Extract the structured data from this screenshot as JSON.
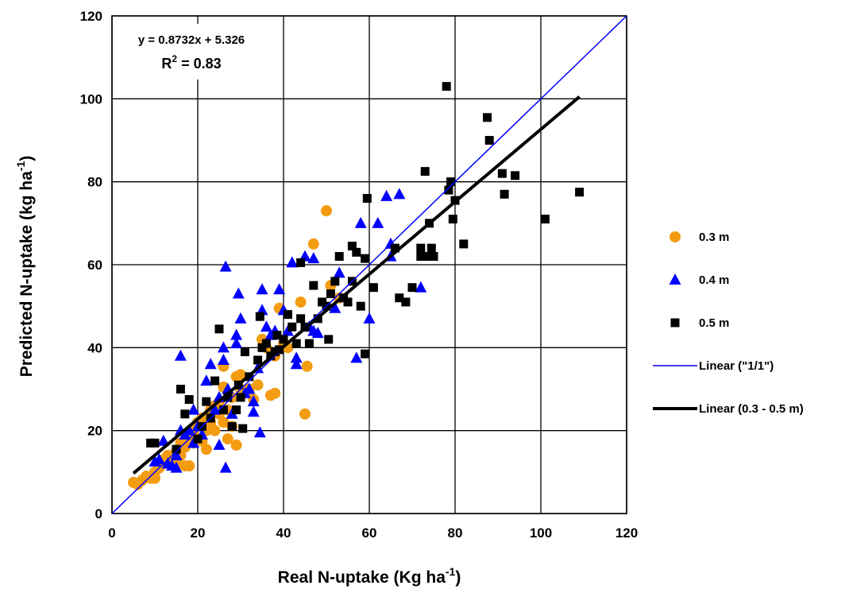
{
  "chart_data": {
    "type": "scatter",
    "xlabel": {
      "main": "Real N-uptake (Kg ha",
      "sup": "-1",
      "end": ")"
    },
    "ylabel": {
      "main": "Predicted N-uptake (kg ha",
      "sup": "-1",
      "end": ")"
    },
    "xlim": [
      0,
      120
    ],
    "ylim": [
      0,
      120
    ],
    "xticks": [
      0,
      20,
      40,
      60,
      80,
      100,
      120
    ],
    "yticks": [
      0,
      20,
      40,
      60,
      80,
      100,
      120
    ],
    "grid": true,
    "legend_position": "right",
    "annotation": {
      "equation": "y = 0.8732x + 5.326",
      "r2_main": "R",
      "r2_sup": "2",
      "r2_end": " = 0.83"
    },
    "series": [
      {
        "name": "0.3 m",
        "marker": "circle",
        "color": "#f39c12",
        "points": [
          [
            5,
            7.5
          ],
          [
            6,
            7
          ],
          [
            7,
            8
          ],
          [
            8,
            9
          ],
          [
            9,
            8.5
          ],
          [
            10,
            8.5
          ],
          [
            10,
            10
          ],
          [
            11,
            11
          ],
          [
            12,
            12
          ],
          [
            12,
            13
          ],
          [
            13,
            14
          ],
          [
            14,
            13
          ],
          [
            15,
            15
          ],
          [
            15,
            12.5
          ],
          [
            16,
            14
          ],
          [
            16,
            17
          ],
          [
            17,
            11.5
          ],
          [
            17,
            16
          ],
          [
            18,
            18
          ],
          [
            18,
            11.5
          ],
          [
            19,
            20
          ],
          [
            19,
            17
          ],
          [
            20,
            22
          ],
          [
            20,
            18
          ],
          [
            21,
            23
          ],
          [
            21,
            17.5
          ],
          [
            22,
            15.5
          ],
          [
            22,
            20
          ],
          [
            23,
            25
          ],
          [
            23,
            22
          ],
          [
            24,
            26
          ],
          [
            24,
            20
          ],
          [
            25,
            27
          ],
          [
            25,
            24
          ],
          [
            26,
            30.5
          ],
          [
            26,
            35.5
          ],
          [
            26,
            22
          ],
          [
            27,
            18
          ],
          [
            27,
            25
          ],
          [
            28,
            28
          ],
          [
            28,
            21
          ],
          [
            29,
            33
          ],
          [
            29,
            16.5
          ],
          [
            30,
            33.5
          ],
          [
            30,
            30
          ],
          [
            31,
            29
          ],
          [
            32,
            30
          ],
          [
            33,
            27.5
          ],
          [
            34,
            31
          ],
          [
            35,
            42
          ],
          [
            36,
            40
          ],
          [
            37,
            28.5
          ],
          [
            38,
            38
          ],
          [
            38,
            29
          ],
          [
            39,
            49.5
          ],
          [
            40,
            41
          ],
          [
            41,
            40
          ],
          [
            44,
            51
          ],
          [
            45,
            24
          ],
          [
            45.5,
            35.5
          ],
          [
            47,
            65
          ],
          [
            50,
            73
          ],
          [
            51,
            55
          ],
          [
            53,
            52
          ]
        ]
      },
      {
        "name": "0.4 m",
        "marker": "triangle",
        "color": "#0000ff",
        "points": [
          [
            10,
            12.5
          ],
          [
            11,
            13
          ],
          [
            12,
            17.5
          ],
          [
            13,
            12
          ],
          [
            14,
            11.5
          ],
          [
            15,
            11
          ],
          [
            15,
            14
          ],
          [
            16,
            38
          ],
          [
            16,
            20
          ],
          [
            17,
            19
          ],
          [
            18,
            20
          ],
          [
            19,
            25
          ],
          [
            19,
            17
          ],
          [
            20,
            21
          ],
          [
            21,
            19
          ],
          [
            22,
            32
          ],
          [
            23,
            36
          ],
          [
            24,
            25
          ],
          [
            25,
            28
          ],
          [
            25,
            16.5
          ],
          [
            26,
            40
          ],
          [
            26,
            37
          ],
          [
            26.5,
            59.5
          ],
          [
            26.5,
            11
          ],
          [
            27,
            30
          ],
          [
            28,
            24
          ],
          [
            29,
            43
          ],
          [
            29,
            41
          ],
          [
            29.5,
            53
          ],
          [
            30,
            47
          ],
          [
            31,
            29
          ],
          [
            32,
            30
          ],
          [
            33,
            27
          ],
          [
            33,
            24.5
          ],
          [
            34,
            35
          ],
          [
            34.5,
            19.5
          ],
          [
            35,
            49
          ],
          [
            35,
            54
          ],
          [
            36,
            45
          ],
          [
            37,
            43
          ],
          [
            38,
            44
          ],
          [
            39,
            54
          ],
          [
            40,
            49
          ],
          [
            41,
            44
          ],
          [
            42,
            60.5
          ],
          [
            43,
            37.5
          ],
          [
            43,
            36
          ],
          [
            45,
            62
          ],
          [
            46,
            45
          ],
          [
            47,
            61.5
          ],
          [
            47,
            44
          ],
          [
            48,
            43.5
          ],
          [
            52,
            49.5
          ],
          [
            53,
            58
          ],
          [
            57,
            37.5
          ],
          [
            58,
            70
          ],
          [
            60,
            47
          ],
          [
            62,
            70
          ],
          [
            64,
            76.5
          ],
          [
            65,
            65
          ],
          [
            65,
            62
          ],
          [
            67,
            77
          ],
          [
            72,
            54.5
          ]
        ]
      },
      {
        "name": "0.5 m",
        "marker": "square",
        "color": "#000000",
        "points": [
          [
            9,
            17
          ],
          [
            10,
            17
          ],
          [
            15,
            15.5
          ],
          [
            16,
            30
          ],
          [
            17,
            24
          ],
          [
            18,
            27.5
          ],
          [
            20,
            18
          ],
          [
            21,
            21
          ],
          [
            22,
            27
          ],
          [
            23,
            23
          ],
          [
            24,
            32
          ],
          [
            25,
            44.5
          ],
          [
            26,
            25
          ],
          [
            27,
            28
          ],
          [
            28,
            21
          ],
          [
            29,
            25
          ],
          [
            29.5,
            31
          ],
          [
            30,
            28
          ],
          [
            30.5,
            20.5
          ],
          [
            31,
            39
          ],
          [
            32,
            33
          ],
          [
            34,
            37
          ],
          [
            34.5,
            47.5
          ],
          [
            35,
            40
          ],
          [
            36,
            41
          ],
          [
            37,
            38
          ],
          [
            38,
            39
          ],
          [
            38.5,
            43
          ],
          [
            39,
            39.5
          ],
          [
            40,
            42
          ],
          [
            41,
            48
          ],
          [
            42,
            45
          ],
          [
            43,
            41
          ],
          [
            44,
            60.5
          ],
          [
            44,
            47
          ],
          [
            45,
            45
          ],
          [
            46,
            41
          ],
          [
            47,
            55
          ],
          [
            48,
            47
          ],
          [
            49,
            51
          ],
          [
            50,
            50
          ],
          [
            50.5,
            42
          ],
          [
            51,
            53
          ],
          [
            52,
            56
          ],
          [
            53,
            62
          ],
          [
            54,
            52
          ],
          [
            55,
            51
          ],
          [
            56,
            64.5
          ],
          [
            56,
            56
          ],
          [
            57,
            63
          ],
          [
            58,
            50
          ],
          [
            59,
            61.5
          ],
          [
            59,
            38.5
          ],
          [
            59.5,
            76
          ],
          [
            61,
            54.5
          ],
          [
            66,
            64
          ],
          [
            67,
            52
          ],
          [
            68.5,
            51
          ],
          [
            70,
            54.5
          ],
          [
            72,
            64
          ],
          [
            72,
            62
          ],
          [
            73,
            82.5
          ],
          [
            73.5,
            62
          ],
          [
            74,
            70
          ],
          [
            74.5,
            64
          ],
          [
            75,
            62
          ],
          [
            78,
            103
          ],
          [
            78.5,
            78
          ],
          [
            79,
            80
          ],
          [
            79.5,
            71
          ],
          [
            80,
            75.5
          ],
          [
            82,
            65
          ],
          [
            87.5,
            95.5
          ],
          [
            88,
            90
          ],
          [
            91,
            82
          ],
          [
            91.5,
            77
          ],
          [
            94,
            81.5
          ],
          [
            101,
            71
          ],
          [
            109,
            77.5
          ]
        ]
      }
    ],
    "lines": [
      {
        "name": "Linear (\"1/1\")",
        "color": "#0000ff",
        "width": 1.5,
        "x": [
          0,
          120
        ],
        "y": [
          0,
          120
        ]
      },
      {
        "name": "Linear (0.3 - 0.5 m)",
        "color": "#000000",
        "width": 4,
        "x": [
          5,
          109
        ],
        "y": [
          9.692,
          100.505
        ]
      }
    ]
  }
}
